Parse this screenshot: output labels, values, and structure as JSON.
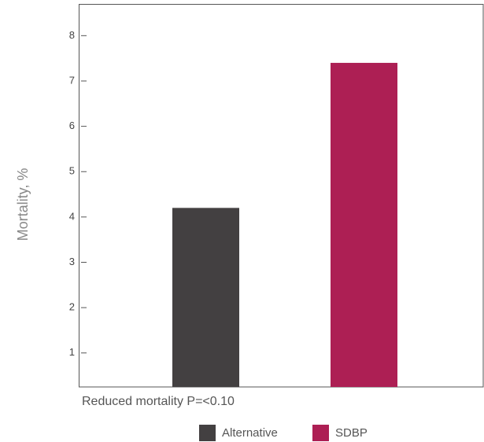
{
  "chart_data": {
    "type": "bar",
    "y_label": "Mortality, %",
    "annotation": "Reduced mortality P=<0.10",
    "series": [
      {
        "name": "Alternative",
        "color": "#434041",
        "values": [
          4.2
        ]
      },
      {
        "name": "SDBP",
        "color": "#ad1f54",
        "values": [
          7.4
        ]
      }
    ],
    "ylim": [
      0.25,
      8.7
    ],
    "yticks": [
      1,
      2,
      3,
      4,
      5,
      6,
      7,
      8
    ],
    "grid": false
  }
}
